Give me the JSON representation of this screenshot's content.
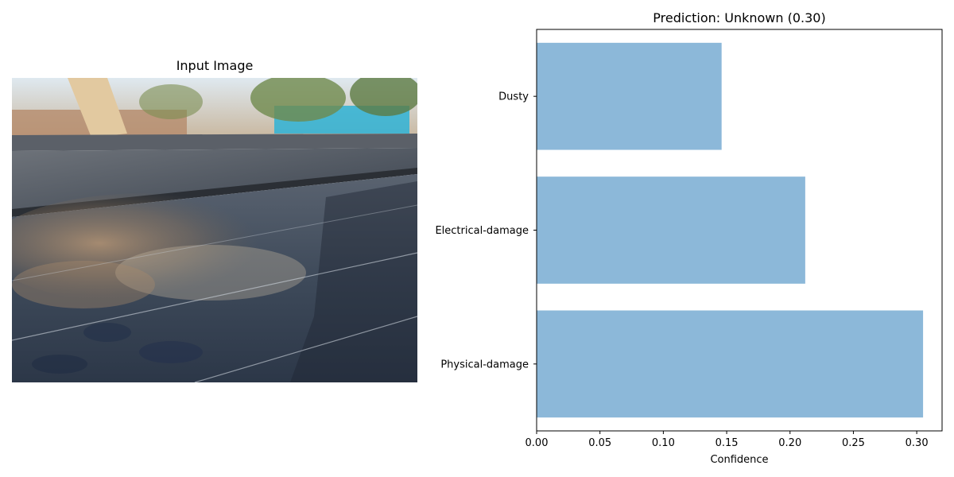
{
  "left_panel": {
    "title": "Input Image"
  },
  "chart_data": {
    "type": "bar",
    "orientation": "horizontal",
    "title": "Prediction: Unknown (0.30)",
    "xlabel": "Confidence",
    "ylabel": "",
    "categories": [
      "Physical-damage",
      "Electrical-damage",
      "Dusty"
    ],
    "values": [
      0.305,
      0.212,
      0.146
    ],
    "xlim": [
      0,
      0.32
    ],
    "xticks": [
      "0.00",
      "0.05",
      "0.10",
      "0.15",
      "0.20",
      "0.25",
      "0.30"
    ],
    "xtick_values": [
      0,
      0.05,
      0.1,
      0.15,
      0.2,
      0.25,
      0.3
    ],
    "bar_color": "#8cb8d9",
    "grid": false
  }
}
